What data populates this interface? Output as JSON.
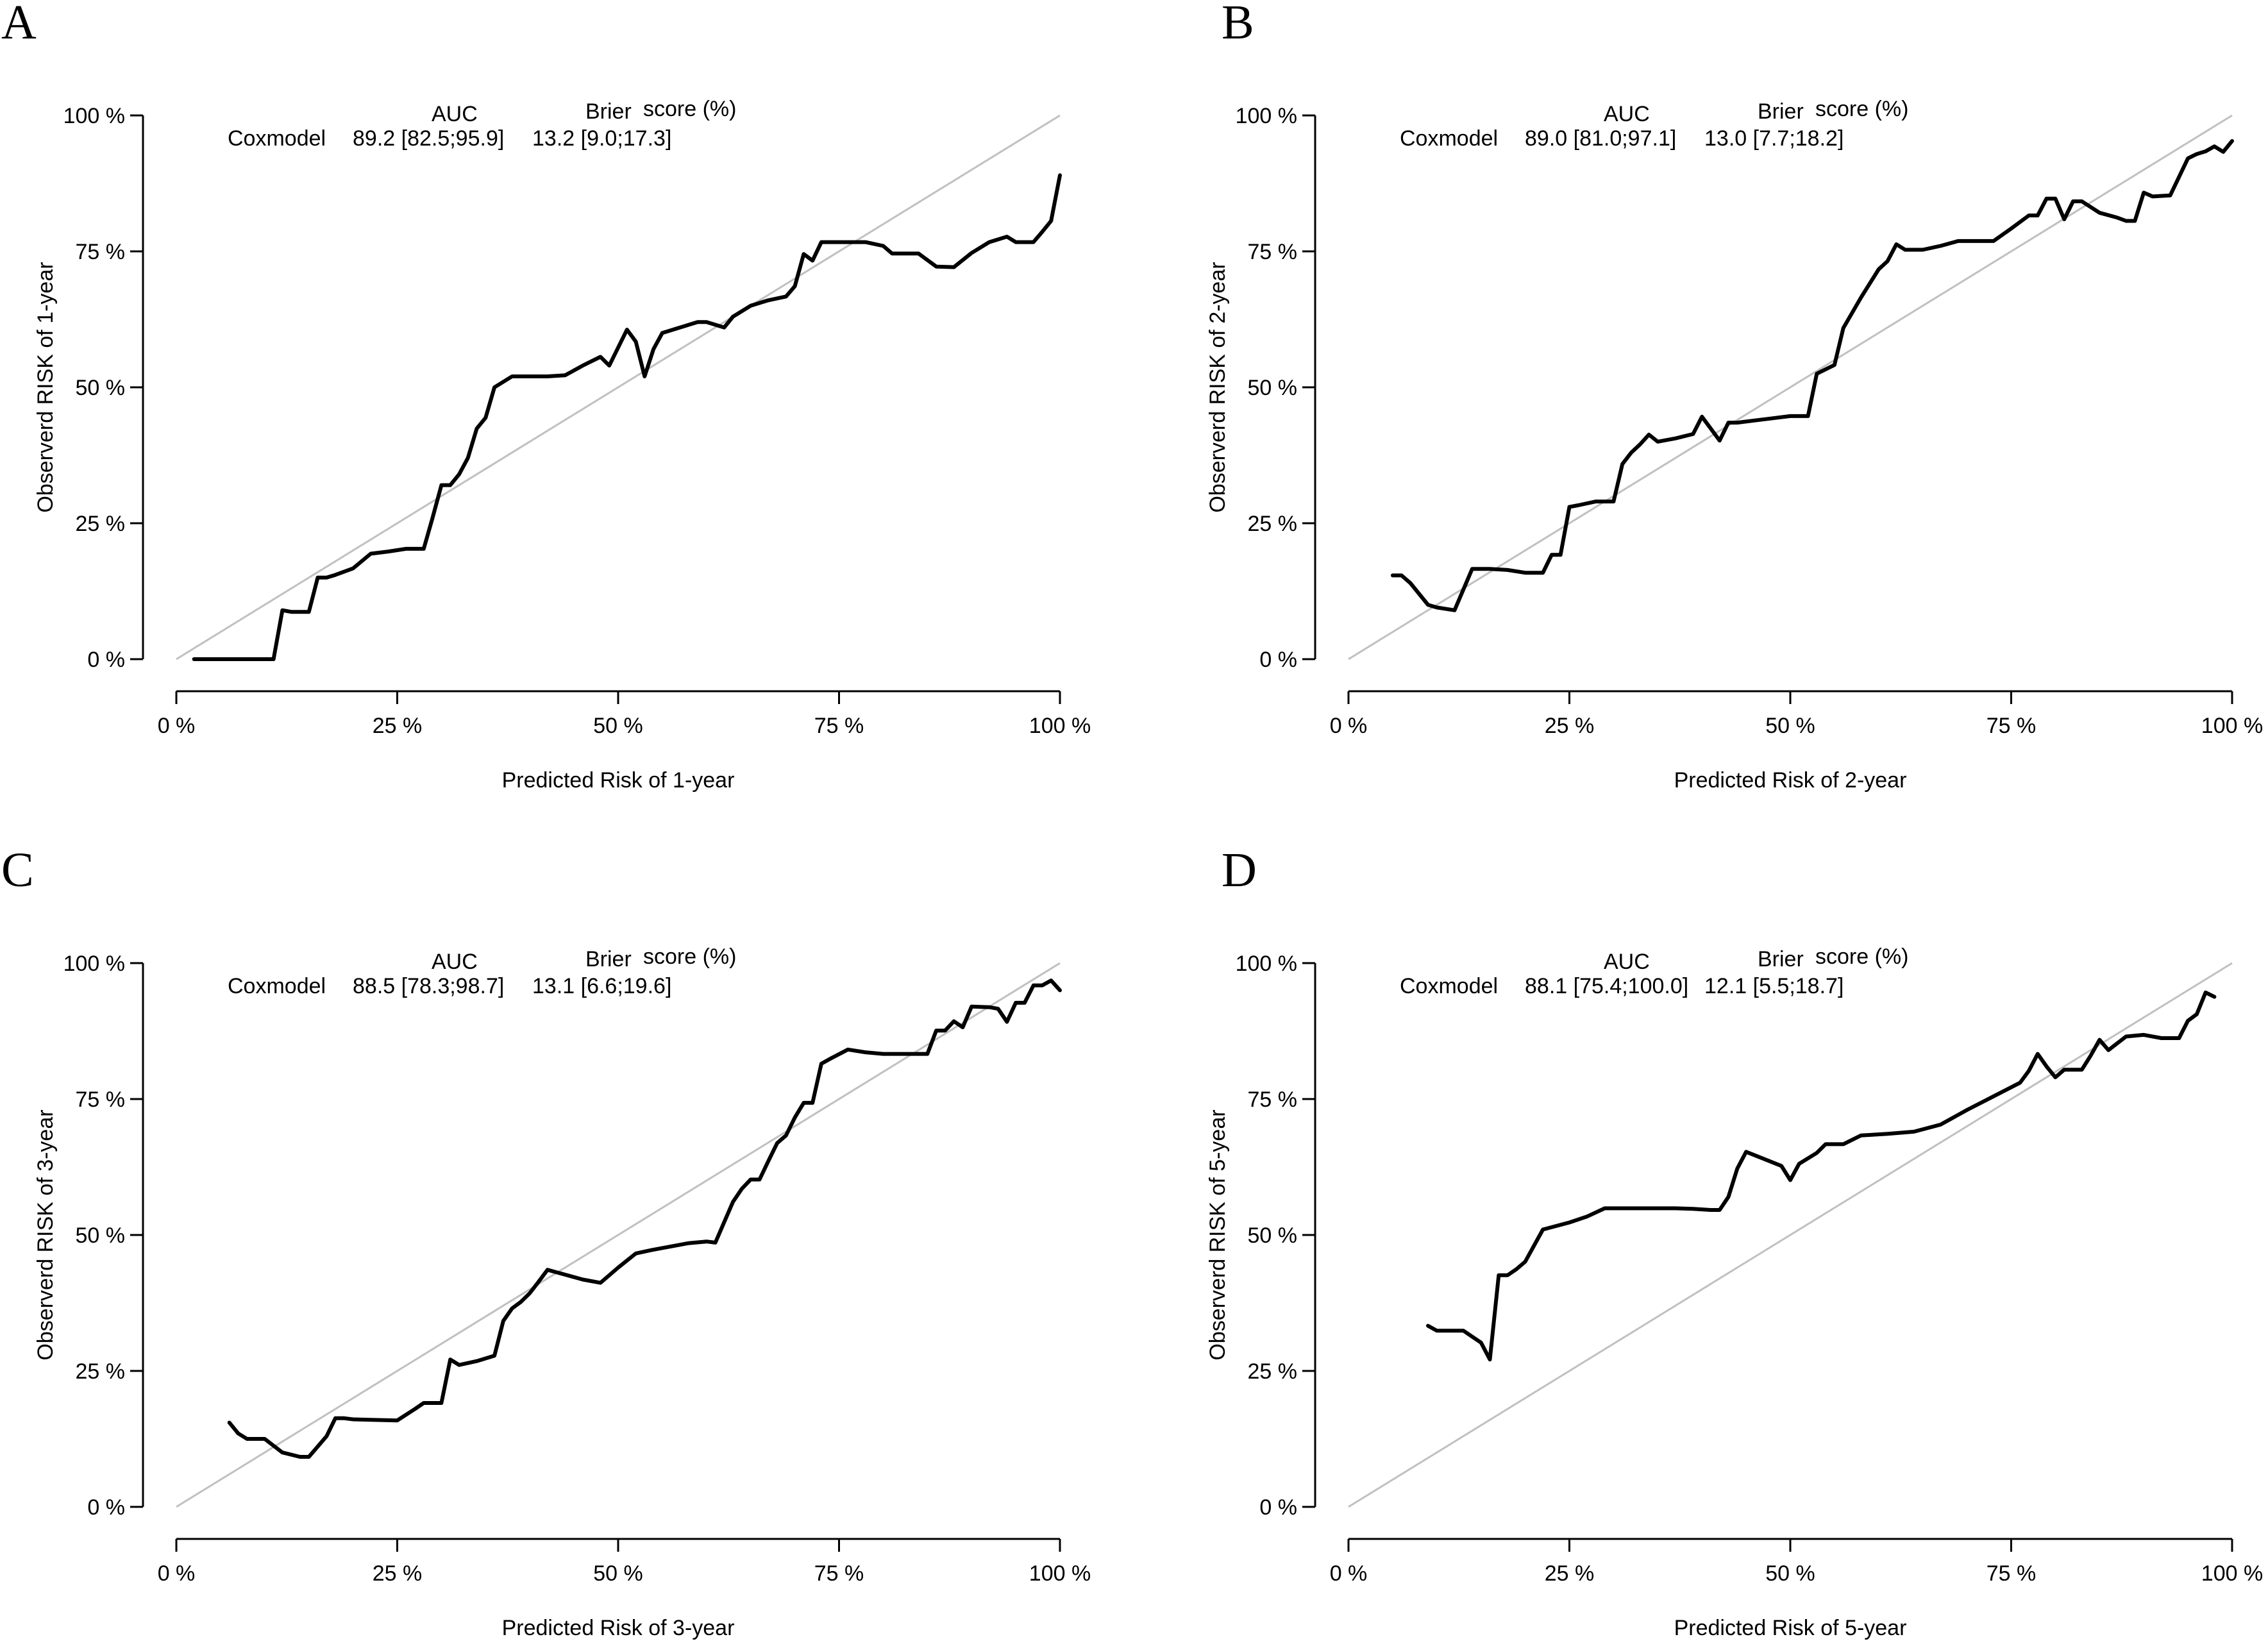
{
  "chart_data": [
    {
      "panel": "A",
      "type": "line",
      "xlabel": "Predicted Risk of 1-year",
      "ylabel": "Observerd RISK of 1-year",
      "xlim": [
        0,
        100
      ],
      "ylim": [
        0,
        100
      ],
      "x_ticks": [
        "0 %",
        "25 %",
        "50 %",
        "75 %",
        "100 %"
      ],
      "y_ticks": [
        "0 %",
        "25 %",
        "50 %",
        "75 %",
        "100 %"
      ],
      "legend": {
        "model": "Coxmodel",
        "auc_header": "AUC",
        "brier_header": "Brier",
        "score_header": "score (%)",
        "auc": "89.2 [82.5;95.9]",
        "brier": "13.2 [9.0;17.3]"
      },
      "reference_line": {
        "name": "Perfect calibration",
        "color": "#c0c0c0",
        "x": [
          0,
          100
        ],
        "y": [
          0,
          100
        ]
      },
      "series": [
        {
          "name": "Coxmodel",
          "color": "#000000",
          "x": [
            2,
            4,
            6,
            8,
            10,
            11,
            12,
            13,
            14,
            15,
            16,
            17,
            18,
            20,
            22,
            24,
            26,
            28,
            29,
            30,
            31,
            32,
            33,
            34,
            35,
            36,
            38,
            40,
            42,
            44,
            46,
            48,
            49,
            50,
            51,
            52,
            53,
            54,
            55,
            57,
            59,
            60,
            62,
            63,
            65,
            67,
            69,
            70,
            71,
            72,
            73,
            74,
            76,
            78,
            80,
            81,
            82,
            84,
            86,
            88,
            90,
            92,
            94,
            95,
            96,
            97,
            98,
            99,
            100
          ],
          "y": [
            0,
            0,
            0,
            0,
            0,
            0,
            9,
            8.7,
            8.7,
            8.7,
            15,
            15,
            15.5,
            16.7,
            19.4,
            19.8,
            20.3,
            20.3,
            26,
            32,
            32,
            34,
            37,
            42.4,
            44.4,
            50,
            52,
            52,
            52,
            52.2,
            54,
            55.6,
            54,
            57.3,
            60.6,
            58.4,
            52,
            57,
            60,
            61,
            62,
            62,
            61,
            63,
            65,
            66,
            66.7,
            68.6,
            74.5,
            73.3,
            76.7,
            76.7,
            76.7,
            76.7,
            76,
            74.6,
            74.6,
            74.6,
            72.2,
            72.1,
            74.7,
            76.7,
            77.7,
            76.7,
            76.7,
            76.7,
            78.6,
            80.6,
            89
          ]
        }
      ]
    },
    {
      "panel": "B",
      "type": "line",
      "xlabel": "Predicted Risk of 2-year",
      "ylabel": "Observerd RISK of 2-year",
      "xlim": [
        0,
        100
      ],
      "ylim": [
        0,
        100
      ],
      "x_ticks": [
        "0 %",
        "25 %",
        "50 %",
        "75 %",
        "100 %"
      ],
      "y_ticks": [
        "0 %",
        "25 %",
        "50 %",
        "75 %",
        "100 %"
      ],
      "legend": {
        "model": "Coxmodel",
        "auc_header": "AUC",
        "brier_header": "Brier",
        "score_header": "score (%)",
        "auc": "89.0 [81.0;97.1]",
        "brier": "13.0 [7.7;18.2]"
      },
      "reference_line": {
        "name": "Perfect calibration",
        "color": "#c0c0c0",
        "x": [
          0,
          100
        ],
        "y": [
          0,
          100
        ]
      },
      "series": [
        {
          "name": "Coxmodel",
          "color": "#000000",
          "x": [
            5,
            6,
            7,
            8,
            9,
            10,
            12,
            14,
            16,
            18,
            20,
            22,
            23,
            24,
            25,
            26,
            28,
            30,
            31,
            32,
            33,
            34,
            35,
            37,
            39,
            40,
            41,
            42,
            43,
            44,
            46,
            48,
            50,
            52,
            53,
            55,
            56,
            58,
            60,
            61,
            62,
            63,
            65,
            67,
            69,
            71,
            73,
            75,
            77,
            78,
            79,
            80,
            81,
            82,
            83,
            85,
            87,
            88,
            89,
            90,
            91,
            93,
            95,
            96,
            97,
            98,
            99,
            100
          ],
          "y": [
            15.4,
            15.4,
            14,
            12,
            10,
            9.5,
            9,
            16.6,
            16.6,
            16.4,
            15.9,
            15.9,
            19.2,
            19.2,
            28,
            28.3,
            29,
            29,
            35.9,
            38,
            39.5,
            41.3,
            40,
            40.6,
            41.4,
            44.6,
            42.4,
            40.2,
            43.5,
            43.5,
            43.9,
            44.3,
            44.7,
            44.7,
            52.5,
            54.1,
            60.9,
            66.5,
            71.7,
            73.2,
            76.3,
            75.3,
            75.3,
            76,
            76.9,
            76.9,
            76.9,
            79.2,
            81.6,
            81.6,
            84.7,
            84.7,
            80.9,
            84.2,
            84.2,
            82.1,
            81.2,
            80.6,
            80.6,
            85.8,
            85.1,
            85.3,
            92.1,
            92.9,
            93.4,
            94.3,
            93.3,
            95.3
          ]
        }
      ]
    },
    {
      "panel": "C",
      "type": "line",
      "xlabel": "Predicted Risk of 3-year",
      "ylabel": "Observerd RISK of 3-year",
      "xlim": [
        0,
        100
      ],
      "ylim": [
        0,
        100
      ],
      "x_ticks": [
        "0 %",
        "25 %",
        "50 %",
        "75 %",
        "100 %"
      ],
      "y_ticks": [
        "0 %",
        "25 %",
        "50 %",
        "75 %",
        "100 %"
      ],
      "legend": {
        "model": "Coxmodel",
        "auc_header": "AUC",
        "brier_header": "Brier",
        "score_header": "score (%)",
        "auc": "88.5 [78.3;98.7]",
        "brier": "13.1 [6.6;19.6]"
      },
      "reference_line": {
        "name": "Perfect calibration",
        "color": "#c0c0c0",
        "x": [
          0,
          100
        ],
        "y": [
          0,
          100
        ]
      },
      "series": [
        {
          "name": "Coxmodel",
          "color": "#000000",
          "x": [
            6,
            7,
            8,
            10,
            12,
            14,
            15,
            17,
            18,
            19,
            20,
            22,
            25,
            27,
            28,
            29,
            30,
            31,
            32,
            34,
            36,
            37,
            38,
            39,
            40,
            41,
            42,
            44,
            46,
            48,
            50,
            52,
            54,
            56,
            58,
            60,
            61,
            63,
            64,
            65,
            66,
            67,
            68,
            69,
            70,
            71,
            72,
            73,
            74,
            76,
            78,
            80,
            82,
            84,
            85,
            86,
            87,
            88,
            89,
            90,
            92,
            93,
            94,
            95,
            96,
            97,
            98,
            99,
            100
          ],
          "y": [
            15.5,
            13.5,
            12.5,
            12.5,
            10,
            9.2,
            9.2,
            13,
            16.3,
            16.3,
            16.1,
            16,
            15.9,
            18,
            19.1,
            19.1,
            19.1,
            27.1,
            26.1,
            26.8,
            27.8,
            34.2,
            36.5,
            37.7,
            39.3,
            41.4,
            43.6,
            42.7,
            41.8,
            41.2,
            44,
            46.6,
            47.3,
            47.9,
            48.5,
            48.8,
            48.6,
            56.1,
            58.5,
            60.2,
            60.2,
            63.6,
            66.9,
            68.3,
            71.6,
            74.3,
            74.3,
            81.5,
            82.4,
            84.1,
            83.6,
            83.3,
            83.3,
            83.3,
            83.3,
            87.6,
            87.6,
            89.3,
            88.2,
            92,
            91.9,
            91.6,
            89.2,
            92.7,
            92.7,
            95.9,
            95.9,
            96.8,
            95
          ]
        }
      ]
    },
    {
      "panel": "D",
      "type": "line",
      "xlabel": "Predicted Risk of 5-year",
      "ylabel": "Observerd RISK of 5-year",
      "xlim": [
        0,
        100
      ],
      "ylim": [
        0,
        100
      ],
      "x_ticks": [
        "0 %",
        "25 %",
        "50 %",
        "75 %",
        "100 %"
      ],
      "y_ticks": [
        "0 %",
        "25 %",
        "50 %",
        "75 %",
        "100 %"
      ],
      "legend": {
        "model": "Coxmodel",
        "auc_header": "AUC",
        "brier_header": "Brier",
        "score_header": "score (%)",
        "auc": "88.1 [75.4;100.0]",
        "brier": "12.1 [5.5;18.7]"
      },
      "reference_line": {
        "name": "Perfect calibration",
        "color": "#c0c0c0",
        "x": [
          0,
          100
        ],
        "y": [
          0,
          100
        ]
      },
      "series": [
        {
          "name": "Coxmodel",
          "color": "#000000",
          "x": [
            9,
            10,
            11,
            13,
            15,
            16,
            17,
            18,
            19,
            20,
            22,
            25,
            27,
            29,
            31,
            33,
            35,
            37,
            39,
            41,
            42,
            43,
            44,
            45,
            47,
            49,
            50,
            51,
            53,
            54,
            56,
            58,
            61,
            64,
            67,
            70,
            73,
            76,
            77,
            78,
            79,
            80,
            81,
            83,
            84,
            85,
            86,
            88,
            90,
            92,
            93,
            94,
            95,
            96,
            97,
            98
          ],
          "y": [
            33.3,
            32.4,
            32.4,
            32.4,
            30.2,
            27.1,
            42.6,
            42.6,
            43.7,
            45.1,
            51,
            52.3,
            53.4,
            54.9,
            54.9,
            54.9,
            54.9,
            54.9,
            54.8,
            54.6,
            54.6,
            57,
            62.2,
            65.3,
            64,
            62.7,
            60.1,
            63.1,
            65.1,
            66.7,
            66.7,
            68.3,
            68.6,
            69,
            70.3,
            73,
            75.5,
            78,
            80.2,
            83.3,
            81,
            79,
            80.4,
            80.4,
            83,
            85.9,
            84,
            86.5,
            86.8,
            86.2,
            86.2,
            86.2,
            89.4,
            90.6,
            94.6,
            93.8
          ]
        }
      ]
    }
  ]
}
